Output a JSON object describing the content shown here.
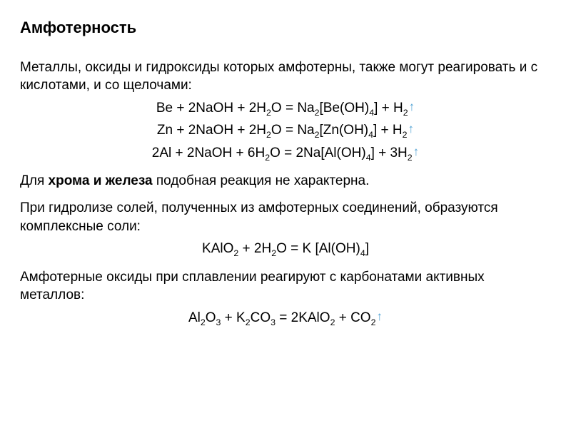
{
  "title": "Амфотерность",
  "intro": "Металлы, оксиды и гидроксиды которых амфотерны, также могут реагировать и с кислотами, и со щелочами:",
  "eq1": "Be + 2NaOH + 2H<sub>2</sub>O = Na<sub>2</sub>[Be(OH)<sub>4</sub>] +  H<sub>2</sub><span class=\"arrow\">↑</span>",
  "eq2": "Zn + 2NaOH + 2H<sub>2</sub>O = Na<sub>2</sub>[Zn(OH)<sub>4</sub>] +  H<sub>2</sub><span class=\"arrow\">↑</span>",
  "eq3": "2Al + 2NaOH + 6H<sub>2</sub>O = 2Na[Al(OH)<sub>4</sub>] + 3H<sub>2</sub><span class=\"arrow\">↑</span>",
  "cr_fe_note_before": "Для ",
  "cr_fe_bold": "хрома и железа",
  "cr_fe_note_after": " подобная реакция не характерна.",
  "hydrolysis": "При гидролизе солей, полученных из амфотерных соединений, образуются комплексные соли:",
  "eq4": "KAlO<sub>2</sub> + 2H<sub>2</sub>O = K [Al(OH)<sub>4</sub>]",
  "fusion": "Амфотерные оксиды при сплавлении реагируют с карбонатами активных металлов:",
  "eq5": "Al<sub>2</sub>O<sub>3</sub> + K<sub>2</sub>CO<sub>3</sub>  = 2KAlO<sub>2</sub> + CO<sub>2</sub><span class=\"arrow\">↑</span>",
  "colors": {
    "text": "#000000",
    "background": "#ffffff",
    "arrow": "#5aa7d6"
  },
  "typography": {
    "font_family": "Arial",
    "title_fontsize_pt": 16,
    "body_fontsize_pt": 14,
    "title_weight": 700,
    "body_weight": 400
  }
}
